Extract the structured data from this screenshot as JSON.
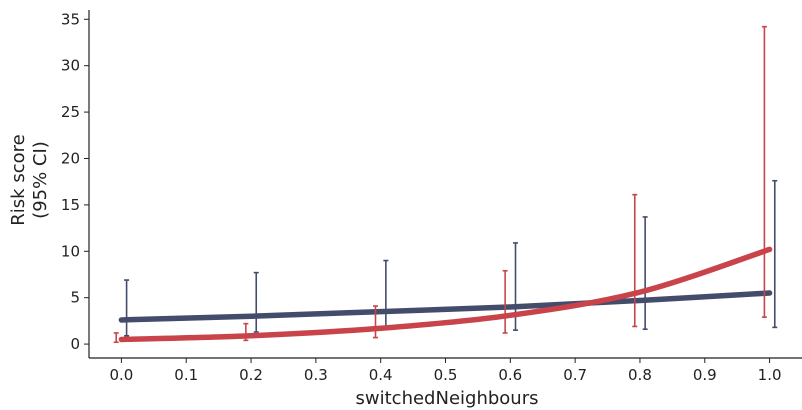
{
  "chart_data": {
    "type": "line",
    "title": "",
    "xlabel": "switchedNeighbours",
    "ylabel": [
      "Risk score",
      "(95% CI)"
    ],
    "xlim": [
      -0.05,
      1.05
    ],
    "ylim": [
      -1.5,
      36
    ],
    "xticks": [
      0.0,
      0.1,
      0.2,
      0.3,
      0.4,
      0.5,
      0.6,
      0.7,
      0.8,
      0.9,
      1.0
    ],
    "xtick_labels": [
      "0.0",
      "0.1",
      "0.2",
      "0.3",
      "0.4",
      "0.5",
      "0.6",
      "0.7",
      "0.8",
      "0.9",
      "1.0"
    ],
    "yticks": [
      0,
      5,
      10,
      15,
      20,
      25,
      30,
      35
    ],
    "ytick_labels": [
      "0",
      "5",
      "10",
      "15",
      "20",
      "25",
      "30",
      "35"
    ],
    "grid": false,
    "legend": "none",
    "series": [
      {
        "color": "#444c6c",
        "x": [
          0.0,
          0.2,
          0.4,
          0.6,
          0.8,
          1.0
        ],
        "line": [
          2.6,
          3.0,
          3.5,
          4.0,
          4.7,
          5.5
        ],
        "error_x": [
          0.008,
          0.208,
          0.408,
          0.608,
          0.808,
          1.008
        ],
        "ci_low": [
          0.9,
          1.3,
          1.6,
          1.5,
          1.6,
          1.8
        ],
        "ci_high": [
          6.9,
          7.7,
          9.0,
          10.9,
          13.7,
          17.6
        ]
      },
      {
        "color": "#c9444a",
        "x": [
          0.0,
          0.2,
          0.4,
          0.6,
          0.8,
          1.0
        ],
        "line": [
          0.5,
          0.9,
          1.7,
          3.1,
          5.6,
          10.2
        ],
        "error_x": [
          -0.008,
          0.192,
          0.392,
          0.592,
          0.792,
          0.992
        ],
        "ci_low": [
          0.2,
          0.4,
          0.7,
          1.2,
          1.9,
          2.9
        ],
        "ci_high": [
          1.2,
          2.2,
          4.1,
          7.9,
          16.1,
          34.2
        ]
      }
    ]
  }
}
